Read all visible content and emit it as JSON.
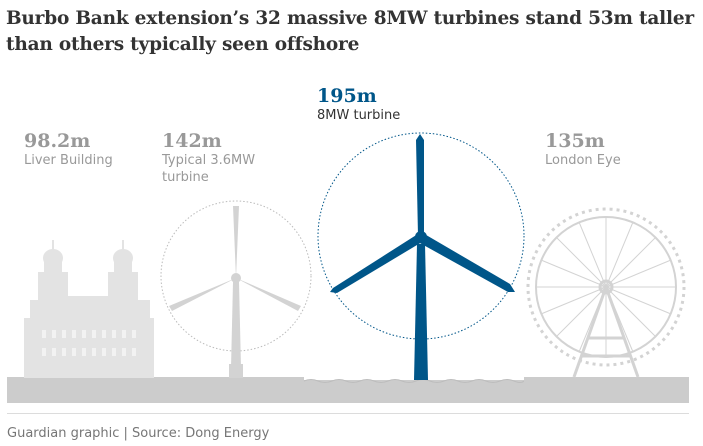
{
  "title": "Burbo Bank extension’s 32 massive 8MW turbines stand 53m taller than others typically seen offshore",
  "structures": {
    "liver": {
      "height": "98.2m",
      "label": "Liver Building"
    },
    "typical": {
      "height": "142m",
      "label_line1": "Typical 3.6MW",
      "label_line2": "turbine"
    },
    "new": {
      "height": "195m",
      "label": "8MW turbine"
    },
    "eye": {
      "height": "135m",
      "label": "London Eye"
    }
  },
  "colors": {
    "highlight": "#005689",
    "grey": "#cccccc",
    "text_grey": "#999999"
  },
  "footer": "Guardian graphic | Source: Dong Energy"
}
